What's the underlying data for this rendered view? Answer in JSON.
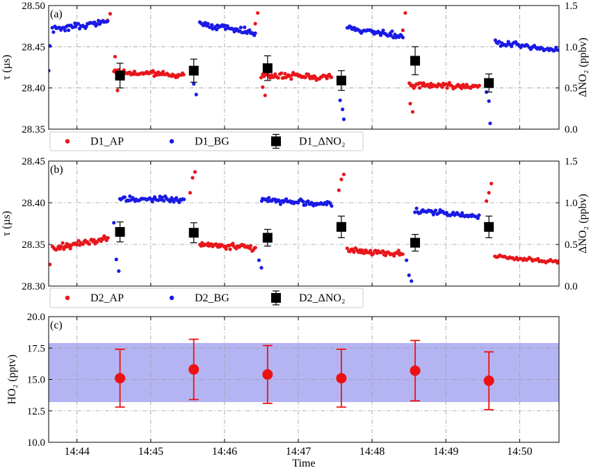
{
  "chart_data": [
    {
      "panel": "(a)",
      "type": "scatter",
      "ylabel": "τ (µs)",
      "y2label": "ΔNO₂ (ppbv)",
      "ylim": [
        28.35,
        28.5
      ],
      "y2lim": [
        0.0,
        1.5
      ],
      "yticks": [
        "28.35",
        "28.40",
        "28.45",
        "28.50"
      ],
      "y2ticks": [
        "0.0",
        "0.5",
        "1.0",
        "1.5"
      ],
      "grid": true,
      "legend_position": "below panel",
      "series": [
        {
          "name": "D1_AP",
          "color": "#e8161b",
          "marker": "dot",
          "segments": [
            {
              "x0": "14:44:30",
              "x1": "14:45:27",
              "start": 28.419,
              "end": 28.416,
              "noise": 0.003,
              "n": 58
            },
            {
              "x0": "14:46:30",
              "x1": "14:47:27",
              "start": 28.415,
              "end": 28.414,
              "noise": 0.003,
              "n": 58
            },
            {
              "x0": "14:48:30",
              "x1": "14:49:27",
              "start": 28.404,
              "end": 28.402,
              "noise": 0.003,
              "n": 58
            }
          ],
          "outliers": [
            {
              "x": "14:44:25",
              "y": 28.482
            },
            {
              "x": "14:44:27",
              "y": 28.49
            },
            {
              "x": "14:44:31",
              "y": 28.438
            },
            {
              "x": "14:44:33",
              "y": 28.397
            },
            {
              "x": "14:46:25",
              "y": 28.478
            },
            {
              "x": "14:46:27",
              "y": 28.491
            },
            {
              "x": "14:46:31",
              "y": 28.401
            },
            {
              "x": "14:46:33",
              "y": 28.391
            },
            {
              "x": "14:48:25",
              "y": 28.47
            },
            {
              "x": "14:48:27",
              "y": 28.491
            },
            {
              "x": "14:48:31",
              "y": 28.381
            },
            {
              "x": "14:48:33",
              "y": 28.371
            }
          ]
        },
        {
          "name": "D1_BG",
          "color": "#1a1ae6",
          "marker": "dot",
          "segments": [
            {
              "x0": "14:43:40",
              "x1": "14:44:25",
              "start": 28.471,
              "end": 28.48,
              "noise": 0.003,
              "n": 48
            },
            {
              "x0": "14:45:40",
              "x1": "14:46:25",
              "start": 28.478,
              "end": 28.467,
              "noise": 0.003,
              "n": 48
            },
            {
              "x0": "14:47:40",
              "x1": "14:48:25",
              "start": 28.473,
              "end": 28.462,
              "noise": 0.003,
              "n": 48
            },
            {
              "x0": "14:49:40",
              "x1": "14:50:32",
              "start": 28.455,
              "end": 28.445,
              "noise": 0.003,
              "n": 48
            }
          ],
          "outliers": [
            {
              "x": "14:43:38",
              "y": 28.451
            },
            {
              "x": "14:43:37",
              "y": 28.421
            },
            {
              "x": "14:45:35",
              "y": 28.405
            },
            {
              "x": "14:45:37",
              "y": 28.392
            },
            {
              "x": "14:47:34",
              "y": 28.385
            },
            {
              "x": "14:47:36",
              "y": 28.374
            },
            {
              "x": "14:47:37",
              "y": 28.362
            },
            {
              "x": "14:49:33",
              "y": 28.395
            },
            {
              "x": "14:49:35",
              "y": 28.384
            },
            {
              "x": "14:49:36",
              "y": 28.357
            }
          ]
        },
        {
          "name": "D1_ΔNO₂",
          "color": "#000000",
          "marker": "square",
          "x": [
            "14:44:35",
            "14:45:35",
            "14:46:35",
            "14:47:35",
            "14:48:35",
            "14:49:35"
          ],
          "values": [
            0.65,
            0.71,
            0.74,
            0.59,
            0.83,
            0.56
          ],
          "errors": [
            0.15,
            0.14,
            0.15,
            0.12,
            0.17,
            0.11
          ]
        }
      ]
    },
    {
      "panel": "(b)",
      "type": "scatter",
      "ylabel": "τ (µs)",
      "y2label": "ΔNO₂ (ppbv)",
      "ylim": [
        28.3,
        28.45
      ],
      "y2lim": [
        0.0,
        1.5
      ],
      "yticks": [
        "28.30",
        "28.35",
        "28.40",
        "28.45"
      ],
      "y2ticks": [
        "0.0",
        "0.5",
        "1.0",
        "1.5"
      ],
      "grid": true,
      "legend_position": "below panel",
      "series": [
        {
          "name": "D2_AP",
          "color": "#e8161b",
          "marker": "dot",
          "segments": [
            {
              "x0": "14:43:40",
              "x1": "14:44:25",
              "start": 28.345,
              "end": 28.358,
              "noise": 0.003,
              "n": 50
            },
            {
              "x0": "14:45:40",
              "x1": "14:46:25",
              "start": 28.35,
              "end": 28.346,
              "noise": 0.003,
              "n": 50
            },
            {
              "x0": "14:47:40",
              "x1": "14:48:25",
              "start": 28.343,
              "end": 28.339,
              "noise": 0.003,
              "n": 50
            },
            {
              "x0": "14:49:40",
              "x1": "14:50:32",
              "start": 28.336,
              "end": 28.328,
              "noise": 0.002,
              "n": 40
            }
          ],
          "outliers": [
            {
              "x": "14:43:38",
              "y": 28.326
            },
            {
              "x": "14:45:32",
              "y": 28.412
            },
            {
              "x": "14:45:34",
              "y": 28.43
            },
            {
              "x": "14:45:36",
              "y": 28.437
            },
            {
              "x": "14:47:33",
              "y": 28.415
            },
            {
              "x": "14:47:35",
              "y": 28.428
            },
            {
              "x": "14:47:37",
              "y": 28.434
            },
            {
              "x": "14:49:33",
              "y": 28.402
            },
            {
              "x": "14:49:35",
              "y": 28.412
            },
            {
              "x": "14:49:37",
              "y": 28.423
            }
          ]
        },
        {
          "name": "D2_BG",
          "color": "#1a1ae6",
          "marker": "dot",
          "segments": [
            {
              "x0": "14:44:35",
              "x1": "14:45:27",
              "start": 28.405,
              "end": 28.404,
              "noise": 0.003,
              "n": 52
            },
            {
              "x0": "14:46:30",
              "x1": "14:47:27",
              "start": 28.404,
              "end": 28.398,
              "noise": 0.003,
              "n": 55
            },
            {
              "x0": "14:48:35",
              "x1": "14:49:27",
              "start": 28.39,
              "end": 28.384,
              "noise": 0.003,
              "n": 50
            }
          ],
          "outliers": [
            {
              "x": "14:44:30",
              "y": 28.376
            },
            {
              "x": "14:44:32",
              "y": 28.332
            },
            {
              "x": "14:44:34",
              "y": 28.318
            },
            {
              "x": "14:46:28",
              "y": 28.331
            },
            {
              "x": "14:46:30",
              "y": 28.322
            },
            {
              "x": "14:48:28",
              "y": 28.331
            },
            {
              "x": "14:48:30",
              "y": 28.313
            },
            {
              "x": "14:48:32",
              "y": 28.306
            }
          ]
        },
        {
          "name": "D2_ΔNO₂",
          "color": "#000000",
          "marker": "square",
          "x": [
            "14:44:35",
            "14:45:35",
            "14:46:35",
            "14:47:35",
            "14:48:35",
            "14:49:35"
          ],
          "values": [
            0.65,
            0.64,
            0.58,
            0.71,
            0.52,
            0.71
          ],
          "errors": [
            0.12,
            0.12,
            0.1,
            0.13,
            0.1,
            0.13
          ]
        }
      ]
    },
    {
      "panel": "(c)",
      "type": "scatter",
      "xlabel": "Time",
      "ylabel": "HO₂ (pptv)",
      "ylim": [
        10.0,
        20.0
      ],
      "yticks": [
        "10.0",
        "12.5",
        "15.0",
        "17.5",
        "20.0"
      ],
      "xticks": [
        "14:44",
        "14:45",
        "14:46",
        "14:47",
        "14:48",
        "14:49",
        "14:50"
      ],
      "xlim": [
        "14:43:37",
        "14:50:32"
      ],
      "grid": true,
      "band": {
        "low": 13.2,
        "high": 17.9,
        "color": "#b0b0f2"
      },
      "series": [
        {
          "name": "HO₂",
          "color": "#ee1111",
          "marker": "circle",
          "x": [
            "14:44:35",
            "14:45:35",
            "14:46:35",
            "14:47:35",
            "14:48:35",
            "14:49:35"
          ],
          "values": [
            15.1,
            15.8,
            15.4,
            15.1,
            15.7,
            14.9
          ],
          "errors": [
            2.3,
            2.4,
            2.3,
            2.3,
            2.4,
            2.3
          ]
        }
      ]
    }
  ]
}
